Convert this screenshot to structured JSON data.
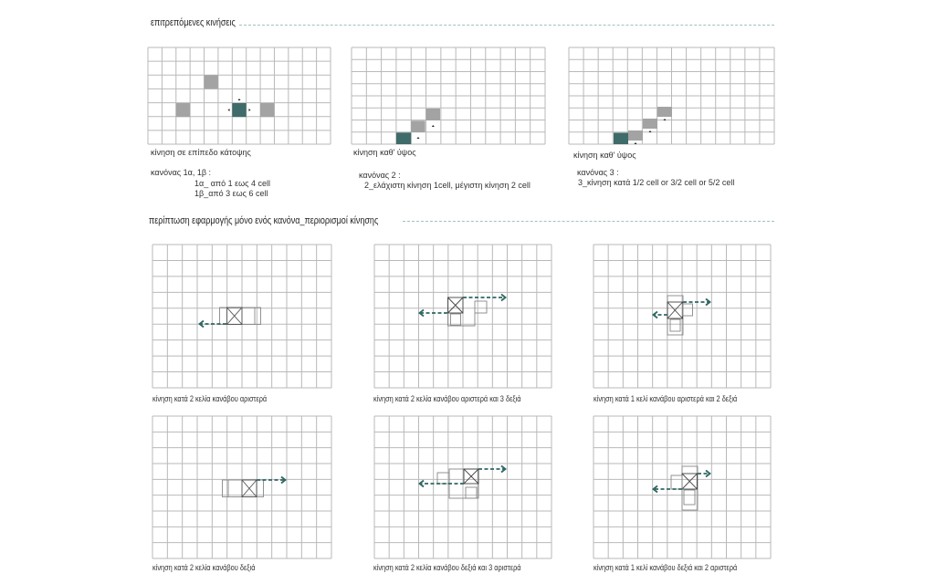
{
  "colors": {
    "accent": "#3f6b6a",
    "moved_cell": "#a3a3a3",
    "arrow": "#2f6764",
    "grid": "#b9b9b9",
    "rule": "#9cc3c0"
  },
  "section1": {
    "title": "επιτρεπόμενες κινήσεις",
    "panels": [
      {
        "caption": "κίνηση σε επίπεδο κάτοψης",
        "rule_title": "κανόνας 1α, 1β :",
        "rule_lines": [
          "1α_ από 1 εως 4 cell",
          "1β_από 3 εως 6 cell"
        ]
      },
      {
        "caption": "κίνηση καθ' ύψος",
        "rule_title": "κανόνας 2 :",
        "rule_lines": [
          "2_ελάχιστη κίνηση 1cell, μέγιστη κίνηση 2 cell"
        ]
      },
      {
        "caption": "κίνηση καθ' ύψος",
        "rule_title": "κανόνας 3 :",
        "rule_lines": [
          "3_κίνηση κατά 1/2 cell or 3/2 cell or 5/2 cell"
        ]
      }
    ]
  },
  "section2": {
    "title": "περίπτωση εφαρμογής μόνο ενός κανόνα_περιορισμοί κίνησης",
    "cases": [
      {
        "caption": "κίνηση κατά 2 κελία κανάβου αριστερά"
      },
      {
        "caption": "κίνηση κατά 2 κελία κανάβου αριστερά και 3 δεξιά"
      },
      {
        "caption": "κίνηση κατά 1 κελί κανάβου αριστερά και 2 δεξιά"
      },
      {
        "caption": "κίνηση κατά 2 κελία κανάβου δεξιά"
      },
      {
        "caption": "κίνηση κατά 2 κελία κανάβου δεξιά και 3 αριστερά"
      },
      {
        "caption": "κίνηση κατά 1 κελί κανάβου δεξιά και 2 αριστερά"
      }
    ]
  }
}
